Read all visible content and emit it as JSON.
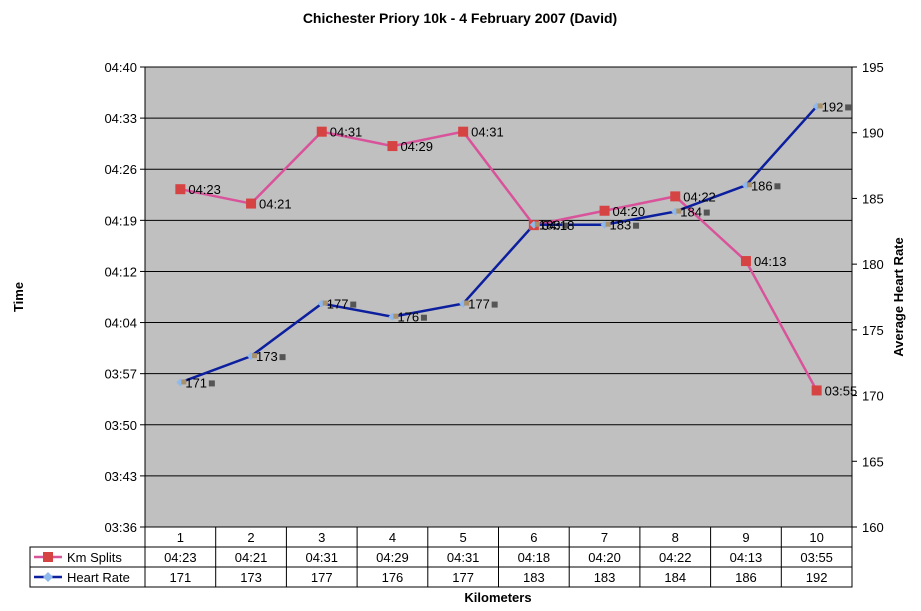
{
  "chart_data": {
    "type": "line",
    "title": "Chichester Priory 10k - 4 February 2007 (David)",
    "xlabel": "Kilometers",
    "ylabel": "Time",
    "y2label": "Average Heart Rate",
    "categories": [
      "1",
      "2",
      "3",
      "4",
      "5",
      "6",
      "7",
      "8",
      "9",
      "10"
    ],
    "y_ticks": [
      "03:36",
      "03:43",
      "03:50",
      "03:57",
      "04:04",
      "04:12",
      "04:19",
      "04:26",
      "04:33",
      "04:40"
    ],
    "ylim_seconds": [
      216,
      280
    ],
    "y2lim": [
      160,
      195
    ],
    "y2_ticks": [
      "160",
      "165",
      "170",
      "175",
      "180",
      "185",
      "190",
      "195"
    ],
    "grid": true,
    "legend": "data-table",
    "series": [
      {
        "name": "Km Splits",
        "axis": "left",
        "color": "#d9539a",
        "marker_color": "#d54343",
        "values": [
          "04:23",
          "04:21",
          "04:31",
          "04:29",
          "04:31",
          "04:18",
          "04:20",
          "04:22",
          "04:13",
          "03:55"
        ],
        "seconds": [
          263,
          261,
          271,
          269,
          271,
          258,
          260,
          262,
          253,
          235
        ]
      },
      {
        "name": "Heart Rate",
        "axis": "right",
        "color": "#0c1f9e",
        "marker_color": "#8fb8ec",
        "values": [
          "171",
          "173",
          "177",
          "176",
          "177",
          "183",
          "183",
          "184",
          "186",
          "192"
        ],
        "numbers": [
          171,
          173,
          177,
          176,
          177,
          183,
          183,
          184,
          186,
          192
        ]
      }
    ]
  }
}
